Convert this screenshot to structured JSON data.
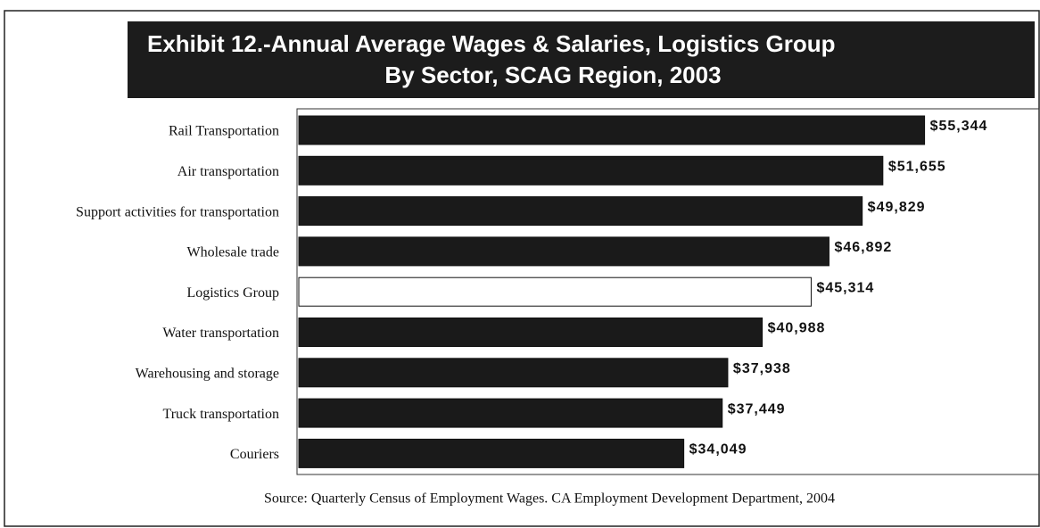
{
  "chart_data": {
    "type": "bar",
    "orientation": "horizontal",
    "title": [
      "Exhibit 12.-Annual Average Wages & Salaries, Logistics Group",
      "By Sector, SCAG Region, 2003"
    ],
    "categories": [
      "Rail Transportation",
      "Air transportation",
      "Support activities for transportation",
      "Wholesale trade",
      "Logistics Group",
      "Water transportation",
      "Warehousing and storage",
      "Truck transportation",
      "Couriers"
    ],
    "values": [
      55344,
      51655,
      49829,
      46892,
      45314,
      40988,
      37938,
      37449,
      34049
    ],
    "value_labels": [
      "$55,344",
      "$51,655",
      "$49,829",
      "$46,892",
      "$45,314",
      "$40,988",
      "$37,938",
      "$37,449",
      "$34,049"
    ],
    "colors": [
      "#1a1a1a",
      "#1a1a1a",
      "#1a1a1a",
      "#1a1a1a",
      "#ffffff",
      "#1a1a1a",
      "#1a1a1a",
      "#1a1a1a",
      "#1a1a1a"
    ],
    "xlim": [
      0,
      65000
    ],
    "source": "Source: Quarterly Census of Employment Wages. CA Employment Development Department, 2004"
  }
}
